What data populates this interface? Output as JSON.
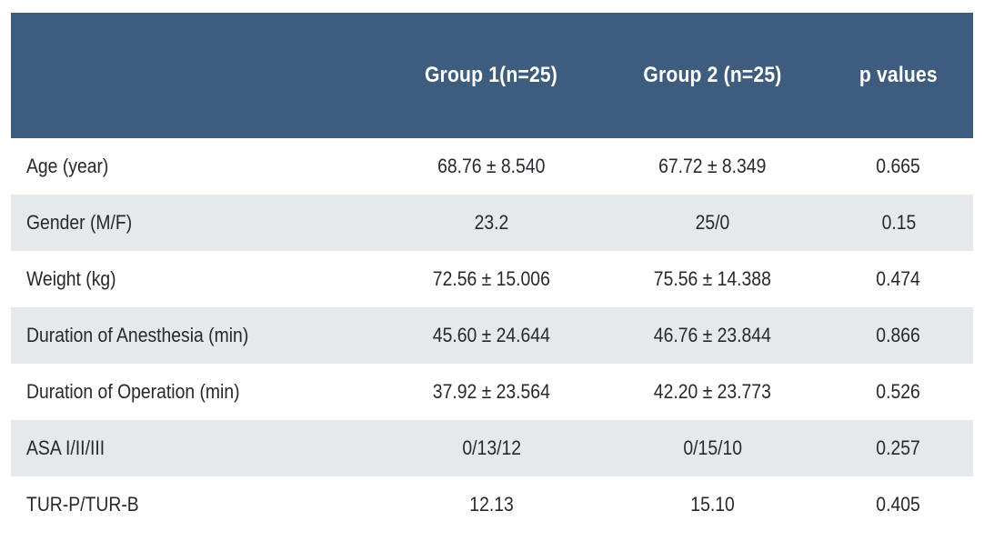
{
  "colors": {
    "header_bg": "#3e5c7d",
    "header_text": "#ffffff",
    "row_bg": "#ffffff",
    "row_alt_bg": "#e6e9eb",
    "body_text": "#26282d"
  },
  "table": {
    "header": {
      "corner": "",
      "group1": "Group 1(n=25)",
      "group2": "Group 2 (n=25)",
      "p": "p values"
    },
    "rows": [
      {
        "label": "Age (year)",
        "group1": "68.76 ± 8.540",
        "group2": "67.72 ± 8.349",
        "p": "0.665"
      },
      {
        "label": "Gender (M/F)",
        "group1": "23.2",
        "group2": "25/0",
        "p": "0.15"
      },
      {
        "label": "Weight (kg)",
        "group1": "72.56 ± 15.006",
        "group2": "75.56 ± 14.388",
        "p": "0.474"
      },
      {
        "label": "Duration of Anesthesia (min)",
        "group1": "45.60 ± 24.644",
        "group2": "46.76 ± 23.844",
        "p": "0.866"
      },
      {
        "label": "Duration of Operation (min)",
        "group1": "37.92 ± 23.564",
        "group2": "42.20 ± 23.773",
        "p": "0.526"
      },
      {
        "label": "ASA I/II/III",
        "group1": "0/13/12",
        "group2": "0/15/10",
        "p": "0.257"
      },
      {
        "label": "TUR-P/TUR-B",
        "group1": "12.13",
        "group2": "15.10",
        "p": "0.405"
      }
    ]
  },
  "chart_data": {
    "type": "table",
    "columns": [
      "",
      "Group 1(n=25)",
      "Group 2 (n=25)",
      "p values"
    ],
    "rows": [
      [
        "Age (year)",
        "68.76 ± 8.540",
        "67.72 ± 8.349",
        "0.665"
      ],
      [
        "Gender (M/F)",
        "23.2",
        "25/0",
        "0.15"
      ],
      [
        "Weight (kg)",
        "72.56 ± 15.006",
        "75.56 ± 14.388",
        "0.474"
      ],
      [
        "Duration of Anesthesia (min)",
        "45.60 ± 24.644",
        "46.76 ± 23.844",
        "0.866"
      ],
      [
        "Duration of Operation (min)",
        "37.92 ± 23.564",
        "42.20 ± 23.773",
        "0.526"
      ],
      [
        "ASA I/II/III",
        "0/13/12",
        "0/15/10",
        "0.257"
      ],
      [
        "TUR-P/TUR-B",
        "12.13",
        "15.10",
        "0.405"
      ]
    ]
  }
}
